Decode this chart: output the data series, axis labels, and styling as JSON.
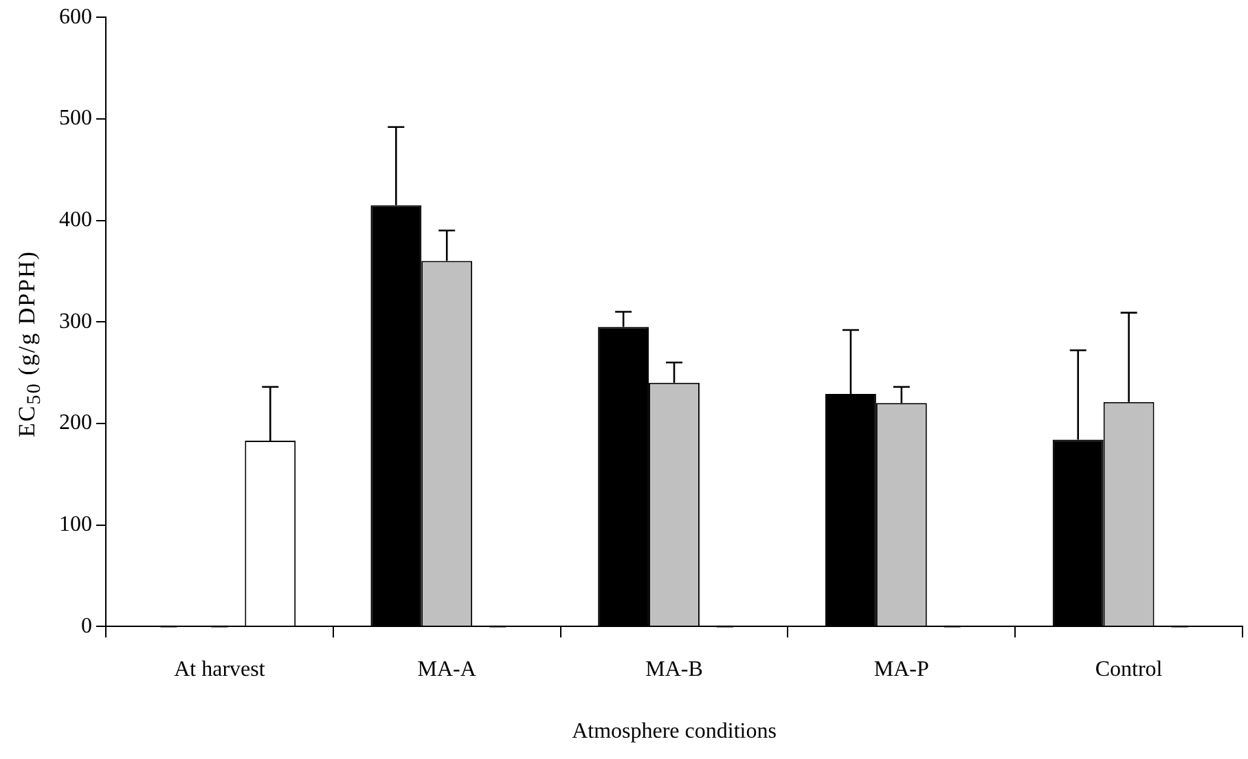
{
  "chart_data": {
    "type": "bar",
    "xlabel": "Atmosphere conditions",
    "ylabel": "EC$_{50}$ (g/g DPPH)",
    "categories": [
      "At harvest",
      "MA-A",
      "MA-B",
      "MA-P",
      "Control"
    ],
    "series": [
      {
        "color": "#000000",
        "values": [
          0,
          415,
          295,
          229,
          184
        ],
        "errors": [
          0,
          77,
          15,
          63,
          88
        ]
      },
      {
        "color": "#c0c0c0",
        "values": [
          0,
          360,
          240,
          220,
          221
        ],
        "errors": [
          0,
          30,
          20,
          16,
          88
        ]
      },
      {
        "color": "#ffffff",
        "values": [
          183,
          0,
          0,
          0,
          0
        ],
        "errors": [
          53,
          0,
          0,
          0,
          0
        ]
      }
    ],
    "ylim": [
      0,
      600
    ],
    "yticks": [
      0,
      100,
      200,
      300,
      400,
      500,
      600
    ]
  }
}
